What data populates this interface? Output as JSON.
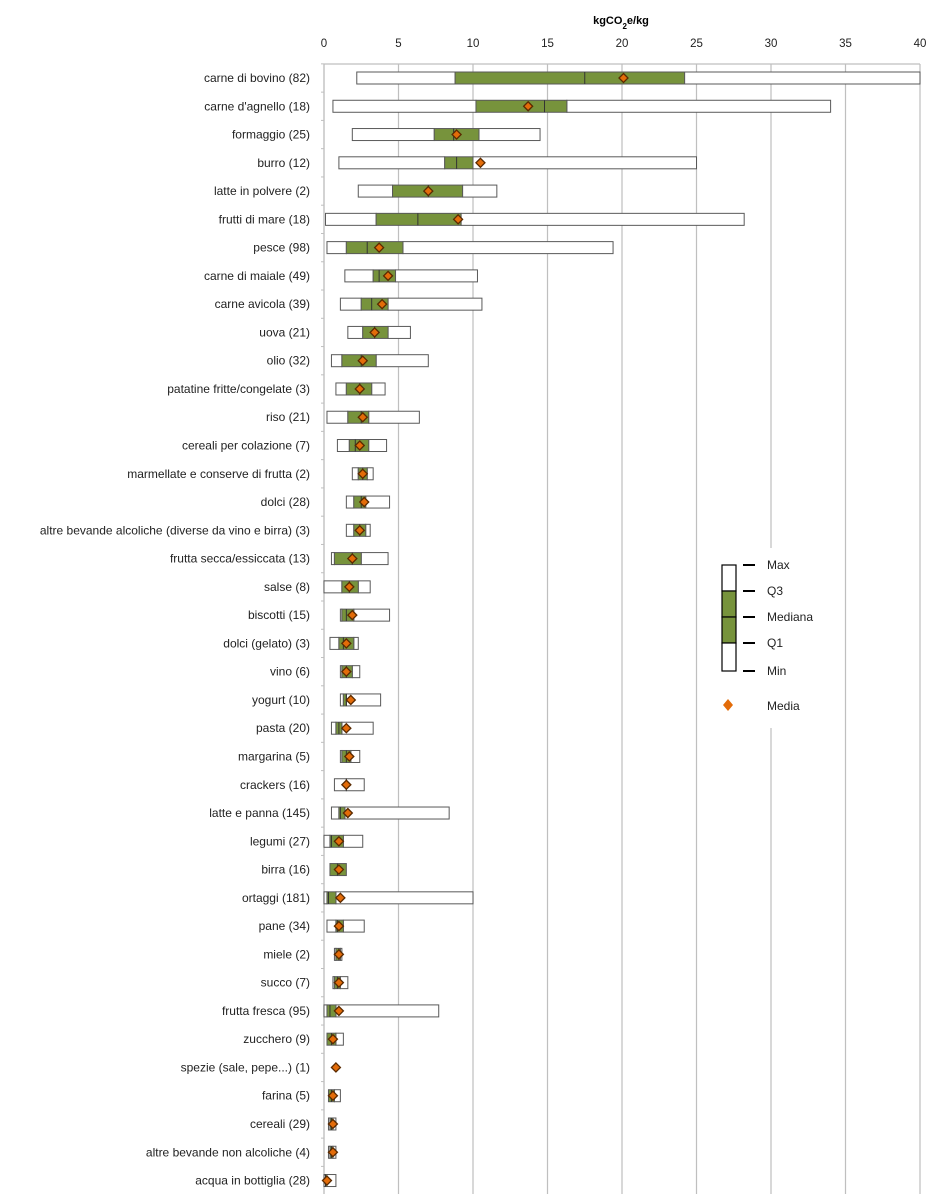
{
  "chart_data": {
    "type": "boxplot",
    "orientation": "horizontal",
    "title": "",
    "xlabel": "kgCO2e/kg",
    "xlabel_parts": {
      "pre": "kgCO",
      "sub": "2",
      "post": "e/kg"
    },
    "ylabel": "",
    "xlim": [
      0,
      40
    ],
    "xticks": [
      0,
      5,
      10,
      15,
      20,
      25,
      30,
      35,
      40
    ],
    "grid": true,
    "axis_position": "top",
    "colors": {
      "box": "#77933c",
      "whisker_fill": "#ffffff",
      "outline": "#595959",
      "mean": "#e36c09",
      "grid": "#bfbfbf"
    },
    "legend": {
      "position": "right-middle",
      "items": [
        "Max",
        "Q3",
        "Mediana",
        "Q1",
        "Min"
      ],
      "mean_label": "Media"
    },
    "series": [
      {
        "label": "carne di bovino (82)",
        "min": 2.2,
        "q1": 8.8,
        "median": 17.5,
        "q3": 24.2,
        "max": 40,
        "mean": 20.1
      },
      {
        "label": "carne d'agnello (18)",
        "min": 0.6,
        "q1": 10.2,
        "median": 14.8,
        "q3": 16.3,
        "max": 34.0,
        "mean": 13.7
      },
      {
        "label": "formaggio (25)",
        "min": 1.9,
        "q1": 7.4,
        "median": 8.7,
        "q3": 10.4,
        "max": 14.5,
        "mean": 8.9
      },
      {
        "label": "burro (12)",
        "min": 1.0,
        "q1": 8.1,
        "median": 8.9,
        "q3": 10.0,
        "max": 25.0,
        "mean": 10.5
      },
      {
        "label": "latte in polvere (2)",
        "min": 2.3,
        "q1": 4.6,
        "median": 7.0,
        "q3": 9.3,
        "max": 11.6,
        "mean": 7.0
      },
      {
        "label": "frutti di mare (18)",
        "min": 0.1,
        "q1": 3.5,
        "median": 6.3,
        "q3": 9.2,
        "max": 28.2,
        "mean": 9.0
      },
      {
        "label": "pesce (98)",
        "min": 0.2,
        "q1": 1.5,
        "median": 2.9,
        "q3": 5.3,
        "max": 19.4,
        "mean": 3.7
      },
      {
        "label": "carne di maiale (49)",
        "min": 1.4,
        "q1": 3.3,
        "median": 3.7,
        "q3": 4.8,
        "max": 10.3,
        "mean": 4.3
      },
      {
        "label": "carne avicola (39)",
        "min": 1.1,
        "q1": 2.5,
        "median": 3.2,
        "q3": 4.3,
        "max": 10.6,
        "mean": 3.9
      },
      {
        "label": "uova (21)",
        "min": 1.6,
        "q1": 2.6,
        "median": 3.4,
        "q3": 4.3,
        "max": 5.8,
        "mean": 3.4
      },
      {
        "label": "olio (32)",
        "min": 0.5,
        "q1": 1.2,
        "median": 2.5,
        "q3": 3.5,
        "max": 7.0,
        "mean": 2.6
      },
      {
        "label": "patatine fritte/congelate (3)",
        "min": 0.8,
        "q1": 1.5,
        "median": 2.4,
        "q3": 3.2,
        "max": 4.1,
        "mean": 2.4
      },
      {
        "label": "riso (21)",
        "min": 0.2,
        "q1": 1.6,
        "median": 2.5,
        "q3": 3.0,
        "max": 6.4,
        "mean": 2.6
      },
      {
        "label": "cereali per colazione (7)",
        "min": 0.9,
        "q1": 1.7,
        "median": 2.1,
        "q3": 3.0,
        "max": 4.2,
        "mean": 2.4
      },
      {
        "label": "marmellate e conserve di frutta (2)",
        "min": 1.9,
        "q1": 2.3,
        "median": 2.6,
        "q3": 2.9,
        "max": 3.3,
        "mean": 2.6
      },
      {
        "label": "dolci (28)",
        "min": 1.5,
        "q1": 2.0,
        "median": 2.5,
        "q3": 2.8,
        "max": 4.4,
        "mean": 2.7
      },
      {
        "label": "altre bevande alcoliche (diverse da vino e birra) (3)",
        "min": 1.5,
        "q1": 2.0,
        "median": 2.4,
        "q3": 2.8,
        "max": 3.1,
        "mean": 2.4
      },
      {
        "label": "frutta secca/essiccata (13)",
        "min": 0.5,
        "q1": 0.7,
        "median": 1.9,
        "q3": 2.5,
        "max": 4.3,
        "mean": 1.9
      },
      {
        "label": "salse (8)",
        "min": 0.0,
        "q1": 1.2,
        "median": 1.7,
        "q3": 2.3,
        "max": 3.1,
        "mean": 1.7
      },
      {
        "label": "biscotti (15)",
        "min": 1.1,
        "q1": 1.2,
        "median": 1.5,
        "q3": 2.0,
        "max": 4.4,
        "mean": 1.9
      },
      {
        "label": "dolci (gelato) (3)",
        "min": 0.4,
        "q1": 1.0,
        "median": 1.3,
        "q3": 2.0,
        "max": 2.3,
        "mean": 1.5
      },
      {
        "label": "vino (6)",
        "min": 1.1,
        "q1": 1.2,
        "median": 1.5,
        "q3": 1.9,
        "max": 2.4,
        "mean": 1.5
      },
      {
        "label": "yogurt (10)",
        "min": 1.1,
        "q1": 1.3,
        "median": 1.5,
        "q3": 1.5,
        "max": 3.8,
        "mean": 1.8
      },
      {
        "label": "pasta (20)",
        "min": 0.5,
        "q1": 0.8,
        "median": 1.0,
        "q3": 1.2,
        "max": 3.3,
        "mean": 1.5
      },
      {
        "label": "margarina (5)",
        "min": 1.1,
        "q1": 1.2,
        "median": 1.5,
        "q3": 1.8,
        "max": 2.4,
        "mean": 1.7
      },
      {
        "label": "crackers (16)",
        "min": 0.7,
        "q1": 1.5,
        "median": 1.5,
        "q3": 1.5,
        "max": 2.7,
        "mean": 1.5
      },
      {
        "label": "latte e panna (145)",
        "min": 0.5,
        "q1": 1.0,
        "median": 1.1,
        "q3": 1.4,
        "max": 8.4,
        "mean": 1.6
      },
      {
        "label": "legumi (27)",
        "min": 0.0,
        "q1": 0.4,
        "median": 0.5,
        "q3": 1.3,
        "max": 2.6,
        "mean": 1.0
      },
      {
        "label": "birra (16)",
        "min": 0.4,
        "q1": 0.4,
        "median": 0.9,
        "q3": 1.5,
        "max": 1.5,
        "mean": 1.0
      },
      {
        "label": "ortaggi (181)",
        "min": 0.0,
        "q1": 0.2,
        "median": 0.3,
        "q3": 0.8,
        "max": 10.0,
        "mean": 1.1
      },
      {
        "label": "pane (34)",
        "min": 0.2,
        "q1": 0.8,
        "median": 0.9,
        "q3": 1.3,
        "max": 2.7,
        "mean": 1.0
      },
      {
        "label": "miele (2)",
        "min": 0.7,
        "q1": 0.8,
        "median": 1.0,
        "q3": 1.1,
        "max": 1.2,
        "mean": 1.0
      },
      {
        "label": "succo (7)",
        "min": 0.6,
        "q1": 0.7,
        "median": 0.9,
        "q3": 1.1,
        "max": 1.6,
        "mean": 1.0
      },
      {
        "label": "frutta fresca (95)",
        "min": 0.0,
        "q1": 0.2,
        "median": 0.4,
        "q3": 0.8,
        "max": 7.7,
        "mean": 1.0
      },
      {
        "label": "zucchero (9)",
        "min": 0.2,
        "q1": 0.2,
        "median": 0.5,
        "q3": 0.8,
        "max": 1.3,
        "mean": 0.6
      },
      {
        "label": "spezie (sale, pepe...) (1)",
        "min": 0.8,
        "q1": 0.8,
        "median": 0.8,
        "q3": 0.8,
        "max": 0.8,
        "mean": 0.8
      },
      {
        "label": "farina (5)",
        "min": 0.3,
        "q1": 0.3,
        "median": 0.5,
        "q3": 0.7,
        "max": 1.1,
        "mean": 0.6
      },
      {
        "label": "cereali (29)",
        "min": 0.3,
        "q1": 0.4,
        "median": 0.5,
        "q3": 0.6,
        "max": 0.8,
        "mean": 0.6
      },
      {
        "label": "altre bevande non alcoliche (4)",
        "min": 0.3,
        "q1": 0.4,
        "median": 0.5,
        "q3": 0.6,
        "max": 0.8,
        "mean": 0.6
      },
      {
        "label": "acqua in bottiglia (28)",
        "min": 0.0,
        "q1": 0.1,
        "median": 0.1,
        "q3": 0.2,
        "max": 0.8,
        "mean": 0.2
      }
    ]
  }
}
